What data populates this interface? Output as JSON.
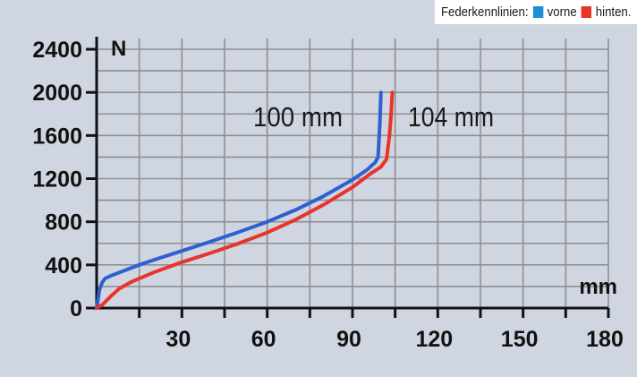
{
  "legend": {
    "title": "Federkennlinien:",
    "items": [
      {
        "label": "vorne",
        "color": "#1e8fd6"
      },
      {
        "label": "hinten.",
        "color": "#e8342b"
      }
    ]
  },
  "chart_data": {
    "type": "line",
    "title": "",
    "xlabel": "mm",
    "ylabel": "N",
    "xlim": [
      0,
      180
    ],
    "ylim": [
      0,
      2400
    ],
    "x_ticks": [
      30,
      60,
      90,
      120,
      150,
      180
    ],
    "x_minor_ticks": [
      15,
      45,
      75,
      105,
      135,
      165
    ],
    "y_ticks": [
      0,
      400,
      800,
      1200,
      1600,
      2000,
      2400
    ],
    "grid": true,
    "series": [
      {
        "name": "vorne",
        "color": "#2f5fd0",
        "end_label": "100 mm",
        "points": [
          [
            0,
            0
          ],
          [
            0.5,
            80
          ],
          [
            1,
            170
          ],
          [
            2,
            240
          ],
          [
            3,
            275
          ],
          [
            5,
            300
          ],
          [
            10,
            350
          ],
          [
            15,
            400
          ],
          [
            20,
            445
          ],
          [
            30,
            530
          ],
          [
            40,
            615
          ],
          [
            50,
            705
          ],
          [
            60,
            800
          ],
          [
            70,
            910
          ],
          [
            80,
            1040
          ],
          [
            90,
            1190
          ],
          [
            95,
            1280
          ],
          [
            98,
            1350
          ],
          [
            99,
            1400
          ],
          [
            99.6,
            1700
          ],
          [
            100,
            2000
          ]
        ]
      },
      {
        "name": "hinten.",
        "color": "#e8342b",
        "end_label": "104 mm",
        "points": [
          [
            0,
            0
          ],
          [
            2,
            30
          ],
          [
            5,
            110
          ],
          [
            8,
            180
          ],
          [
            12,
            240
          ],
          [
            20,
            330
          ],
          [
            30,
            425
          ],
          [
            40,
            510
          ],
          [
            50,
            600
          ],
          [
            60,
            700
          ],
          [
            70,
            820
          ],
          [
            80,
            960
          ],
          [
            90,
            1120
          ],
          [
            96,
            1240
          ],
          [
            100,
            1310
          ],
          [
            102,
            1380
          ],
          [
            103,
            1600
          ],
          [
            103.6,
            1800
          ],
          [
            104,
            2000
          ]
        ]
      }
    ]
  }
}
